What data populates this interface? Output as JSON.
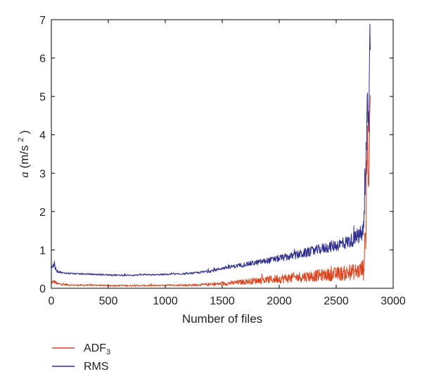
{
  "chart_data": {
    "type": "line",
    "xlabel": "Number of files",
    "ylabel": {
      "var": "a",
      "unit": "(m/s",
      "exp": "2",
      "close": ")"
    },
    "xlim": [
      0,
      3000
    ],
    "ylim": [
      0,
      7
    ],
    "xticks": [
      0,
      500,
      1000,
      1500,
      2000,
      2500,
      3000
    ],
    "yticks": [
      0,
      1,
      2,
      3,
      4,
      5,
      6,
      7
    ],
    "grid": false,
    "legend_position": "bottom-left, below plot",
    "series": [
      {
        "name": "ADF3",
        "label_main": "ADF",
        "label_sub": "3",
        "color": "#d9431e",
        "x": [
          0,
          25,
          50,
          100,
          200,
          300,
          400,
          500,
          600,
          700,
          800,
          900,
          1000,
          1100,
          1200,
          1300,
          1400,
          1500,
          1600,
          1700,
          1800,
          1900,
          2000,
          2100,
          2200,
          2300,
          2400,
          2500,
          2600,
          2700,
          2740,
          2760,
          2775,
          2785,
          2795,
          2800
        ],
        "values": [
          0.15,
          0.18,
          0.12,
          0.1,
          0.08,
          0.08,
          0.08,
          0.07,
          0.07,
          0.07,
          0.07,
          0.07,
          0.08,
          0.08,
          0.08,
          0.09,
          0.1,
          0.12,
          0.14,
          0.17,
          0.2,
          0.22,
          0.25,
          0.27,
          0.3,
          0.32,
          0.35,
          0.37,
          0.4,
          0.45,
          0.5,
          1.5,
          4.2,
          2.5,
          4.3,
          5.6
        ],
        "noise": [
          0.04,
          0.05,
          0.03,
          0.03,
          0.02,
          0.02,
          0.02,
          0.02,
          0.02,
          0.02,
          0.02,
          0.02,
          0.02,
          0.02,
          0.03,
          0.03,
          0.04,
          0.05,
          0.06,
          0.07,
          0.09,
          0.1,
          0.12,
          0.13,
          0.14,
          0.15,
          0.16,
          0.18,
          0.2,
          0.22,
          0.3,
          0.5,
          0.6,
          0.6,
          0.6,
          0.6
        ]
      },
      {
        "name": "RMS",
        "label_main": "RMS",
        "label_sub": "",
        "color": "#2e2f8f",
        "x": [
          0,
          25,
          50,
          100,
          200,
          300,
          400,
          500,
          600,
          700,
          800,
          900,
          1000,
          1100,
          1200,
          1300,
          1400,
          1500,
          1600,
          1700,
          1800,
          1900,
          2000,
          2100,
          2200,
          2300,
          2400,
          2500,
          2600,
          2700,
          2740,
          2760,
          2775,
          2785,
          2795,
          2800
        ],
        "values": [
          0.55,
          0.6,
          0.45,
          0.4,
          0.38,
          0.37,
          0.36,
          0.35,
          0.34,
          0.34,
          0.35,
          0.35,
          0.36,
          0.37,
          0.38,
          0.41,
          0.45,
          0.52,
          0.57,
          0.62,
          0.67,
          0.72,
          0.78,
          0.83,
          0.9,
          0.97,
          1.05,
          1.12,
          1.2,
          1.35,
          1.5,
          3.0,
          5.0,
          4.0,
          6.7,
          5.8
        ],
        "noise": [
          0.05,
          0.06,
          0.04,
          0.02,
          0.02,
          0.02,
          0.02,
          0.02,
          0.02,
          0.02,
          0.02,
          0.02,
          0.02,
          0.02,
          0.02,
          0.03,
          0.04,
          0.04,
          0.05,
          0.06,
          0.07,
          0.08,
          0.09,
          0.1,
          0.12,
          0.13,
          0.14,
          0.16,
          0.18,
          0.2,
          0.3,
          0.5,
          0.6,
          0.6,
          0.6,
          0.6
        ]
      }
    ]
  }
}
